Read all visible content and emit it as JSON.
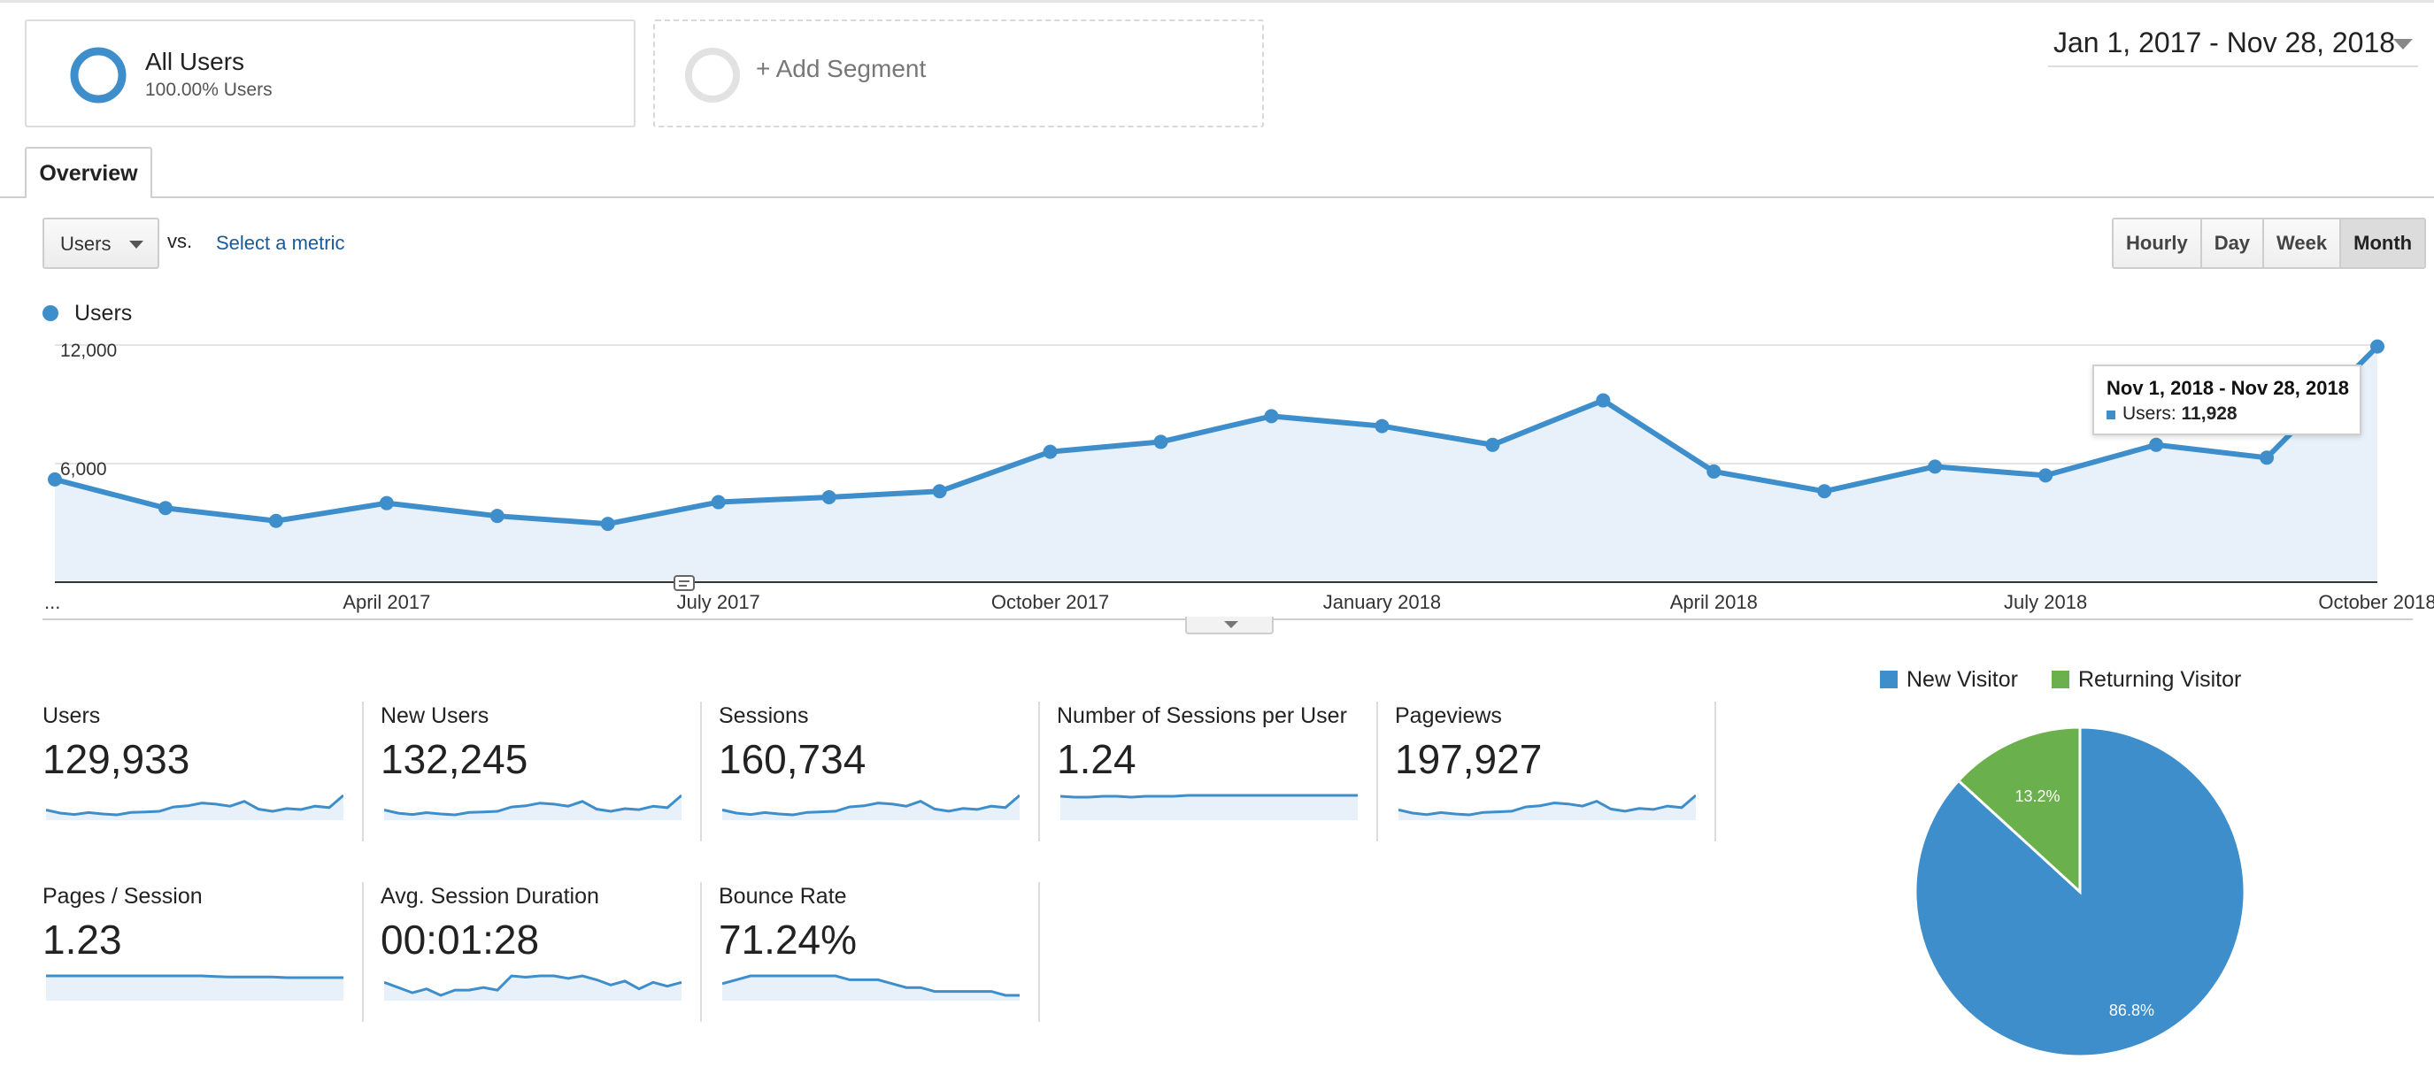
{
  "segments": {
    "all_users": {
      "title": "All Users",
      "subtitle": "100.00% Users"
    },
    "add_segment": {
      "label": "+ Add Segment"
    }
  },
  "date_range": {
    "label": "Jan 1, 2017 - Nov 28, 2018"
  },
  "tabs": [
    {
      "label": "Overview",
      "active": true
    }
  ],
  "metric_selector": {
    "selected": "Users",
    "vs_label": "vs.",
    "select_metric_label": "Select a metric"
  },
  "granularity": {
    "options": [
      {
        "label": "Hourly",
        "active": false
      },
      {
        "label": "Day",
        "active": false
      },
      {
        "label": "Week",
        "active": false
      },
      {
        "label": "Month",
        "active": true
      }
    ]
  },
  "chart_legend": {
    "series_name": "Users",
    "color": "#3d8ecb"
  },
  "tooltip": {
    "range": "Nov 1, 2018 - Nov 28, 2018",
    "metric_label": "Users:",
    "metric_value": "11,928"
  },
  "chart_data": {
    "type": "area",
    "series": [
      {
        "name": "Users",
        "color": "#3d8ecb",
        "values": [
          5200,
          3750,
          3100,
          4000,
          3350,
          2950,
          4050,
          4300,
          4600,
          6600,
          7100,
          8400,
          7900,
          6950,
          9200,
          5600,
          4600,
          5850,
          5400,
          6950,
          6300,
          11928
        ]
      }
    ],
    "x_tick_labels": [
      "...",
      "April 2017",
      "July 2017",
      "October 2017",
      "January 2018",
      "April 2018",
      "July 2018",
      "October 2018"
    ],
    "x_tick_indices": [
      0,
      3,
      6,
      9,
      12,
      15,
      18,
      21
    ],
    "y_tick_labels": [
      "6,000",
      "12,000"
    ],
    "y_tick_values": [
      6000,
      12000
    ],
    "ylim": [
      0,
      12000
    ],
    "grid": true
  },
  "scorecards": [
    {
      "label": "Users",
      "value": "129,933",
      "spark": [
        5200,
        3750,
        3100,
        4000,
        3350,
        2950,
        4050,
        4300,
        4600,
        6600,
        7100,
        8400,
        7900,
        6950,
        9200,
        5600,
        4600,
        5850,
        5400,
        6950,
        6300,
        11928
      ]
    },
    {
      "label": "New Users",
      "value": "132,245",
      "spark": [
        5300,
        3800,
        3150,
        4050,
        3400,
        3000,
        4100,
        4350,
        4650,
        6700,
        7200,
        8500,
        8000,
        7050,
        9300,
        5700,
        4650,
        5900,
        5450,
        7000,
        6350,
        12100
      ]
    },
    {
      "label": "Sessions",
      "value": "160,734",
      "spark": [
        6400,
        4600,
        3800,
        4900,
        4100,
        3600,
        5000,
        5300,
        5650,
        8100,
        8700,
        10300,
        9700,
        8500,
        11300,
        6900,
        5650,
        7200,
        6650,
        8500,
        7700,
        14600
      ]
    },
    {
      "label": "Number of Sessions per User",
      "value": "1.24",
      "spark": [
        1.23,
        1.22,
        1.22,
        1.23,
        1.23,
        1.22,
        1.23,
        1.23,
        1.23,
        1.24,
        1.24,
        1.24,
        1.24,
        1.24,
        1.24,
        1.24,
        1.24,
        1.24,
        1.24,
        1.24,
        1.24,
        1.24
      ]
    },
    {
      "label": "Pageviews",
      "value": "197,927",
      "spark": [
        8000,
        5700,
        4700,
        6100,
        5100,
        4500,
        6200,
        6600,
        7000,
        10000,
        10800,
        12700,
        12000,
        10500,
        13900,
        8500,
        7000,
        8900,
        8200,
        10500,
        9500,
        17900
      ]
    },
    {
      "label": "Pages / Session",
      "value": "1.23",
      "spark": [
        1.26,
        1.26,
        1.26,
        1.26,
        1.26,
        1.26,
        1.26,
        1.26,
        1.26,
        1.26,
        1.26,
        1.26,
        1.25,
        1.24,
        1.24,
        1.24,
        1.24,
        1.23,
        1.23,
        1.23,
        1.23,
        1.23
      ]
    },
    {
      "label": "Avg. Session Duration",
      "value": "00:01:28",
      "spark": [
        90,
        86,
        82,
        85,
        80,
        84,
        84,
        86,
        84,
        95,
        94,
        95,
        95,
        93,
        95,
        92,
        88,
        91,
        85,
        90,
        87,
        90
      ]
    },
    {
      "label": "Bounce Rate",
      "value": "71.24%",
      "spark": [
        74,
        75,
        76,
        76,
        76,
        76,
        76,
        76,
        76,
        75,
        75,
        75,
        74,
        73,
        73,
        72,
        72,
        72,
        72,
        72,
        71,
        71
      ]
    }
  ],
  "pie_chart": {
    "type": "pie",
    "slices": [
      {
        "name": "New Visitor",
        "value": 86.8,
        "label": "86.8%",
        "color": "#3d8ecb"
      },
      {
        "name": "Returning Visitor",
        "value": 13.2,
        "label": "13.2%",
        "color": "#6ab04c"
      }
    ]
  }
}
